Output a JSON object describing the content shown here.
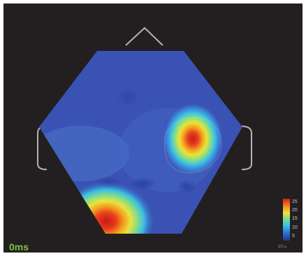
{
  "colors": {
    "background": "#231f20",
    "outline": "#b4b4b4",
    "time_label": "#7cc242",
    "map_base": "#3a52b4"
  },
  "time_label": "0ms",
  "colorbar": {
    "colors": [
      "#2a2f8f",
      "#2e6fd0",
      "#34c5e8",
      "#7fdc8a",
      "#f1e43a",
      "#f08a22",
      "#d8201e"
    ],
    "ticks": [
      "25",
      "20",
      "15",
      "10",
      "5"
    ],
    "exponent_base": "10",
    "exponent_power": "-20"
  },
  "icons": {
    "nose": "nose-outline-icon",
    "left_ear": "left-ear-outline-icon",
    "right_ear": "right-ear-outline-icon"
  }
}
